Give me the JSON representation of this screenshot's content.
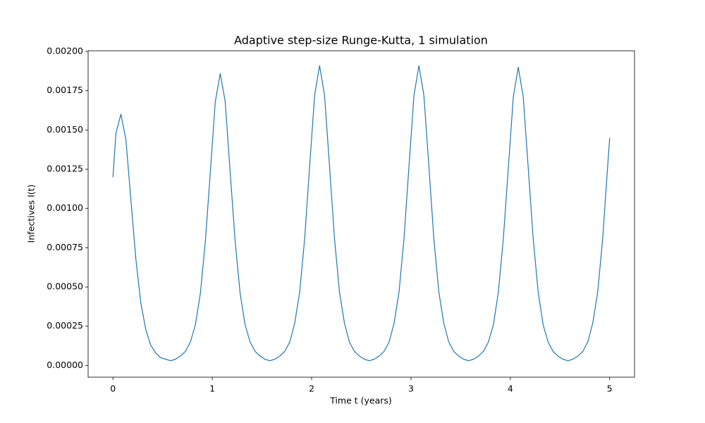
{
  "chart_data": {
    "type": "line",
    "title": "Adaptive step-size Runge-Kutta, 1 simulation",
    "xlabel": "Time t (years)",
    "ylabel": "Infectives I(t)",
    "color": "#1f77b4",
    "x": [
      0,
      0.03,
      0.08,
      0.13,
      0.18,
      0.23,
      0.28,
      0.33,
      0.38,
      0.43,
      0.48,
      0.53,
      0.58,
      0.63,
      0.68,
      0.73,
      0.78,
      0.83,
      0.88,
      0.93,
      0.98,
      1.03,
      1.08,
      1.13,
      1.18,
      1.23,
      1.28,
      1.33,
      1.38,
      1.43,
      1.48,
      1.53,
      1.58,
      1.63,
      1.68,
      1.73,
      1.78,
      1.83,
      1.88,
      1.93,
      1.98,
      2.03,
      2.08,
      2.13,
      2.18,
      2.23,
      2.28,
      2.33,
      2.38,
      2.43,
      2.48,
      2.53,
      2.58,
      2.63,
      2.68,
      2.73,
      2.78,
      2.83,
      2.88,
      2.93,
      2.98,
      3.03,
      3.08,
      3.13,
      3.18,
      3.23,
      3.28,
      3.33,
      3.38,
      3.43,
      3.48,
      3.53,
      3.58,
      3.63,
      3.68,
      3.73,
      3.78,
      3.83,
      3.88,
      3.93,
      3.98,
      4.03,
      4.08,
      4.13,
      4.18,
      4.23,
      4.28,
      4.33,
      4.38,
      4.43,
      4.48,
      4.53,
      4.58,
      4.63,
      4.68,
      4.73,
      4.78,
      4.83,
      4.88,
      4.93,
      4.98,
      5
    ],
    "values": [
      0.0012,
      0.00148,
      0.0016,
      0.00144,
      0.00106,
      0.00068,
      0.0004,
      0.00023,
      0.00013,
      8e-05,
      5e-05,
      4e-05,
      3e-05,
      4e-05,
      6e-05,
      9e-05,
      0.00015,
      0.00026,
      0.00046,
      0.00079,
      0.00123,
      0.00168,
      0.00186,
      0.00168,
      0.00123,
      0.00079,
      0.00046,
      0.00026,
      0.00015,
      9e-05,
      6e-05,
      4e-05,
      3e-05,
      4e-05,
      6e-05,
      9e-05,
      0.00015,
      0.00027,
      0.00047,
      0.00081,
      0.00127,
      0.00172,
      0.00191,
      0.00172,
      0.00127,
      0.00081,
      0.00047,
      0.00027,
      0.00015,
      9e-05,
      6e-05,
      4e-05,
      3e-05,
      4e-05,
      6e-05,
      9e-05,
      0.00015,
      0.00027,
      0.00047,
      0.00081,
      0.00127,
      0.00172,
      0.00191,
      0.00172,
      0.00127,
      0.00081,
      0.00047,
      0.00027,
      0.00015,
      9e-05,
      6e-05,
      4e-05,
      3e-05,
      4e-05,
      6e-05,
      9e-05,
      0.00015,
      0.00026,
      0.00047,
      0.00081,
      0.00126,
      0.00171,
      0.0019,
      0.00171,
      0.00126,
      0.00081,
      0.00047,
      0.00026,
      0.00015,
      9e-05,
      6e-05,
      4e-05,
      3e-05,
      4e-05,
      6e-05,
      9e-05,
      0.00015,
      0.00027,
      0.00047,
      0.00081,
      0.00127,
      0.00145
    ],
    "xlim": [
      -0.25,
      5.25
    ],
    "ylim": [
      -7.45e-05,
      0.0020045
    ],
    "xticks": [
      0,
      1,
      2,
      3,
      4,
      5
    ],
    "yticks": [
      {
        "value": 0,
        "label": "0.00000"
      },
      {
        "value": 0.00025,
        "label": "0.00025"
      },
      {
        "value": 0.0005,
        "label": "0.00050"
      },
      {
        "value": 0.00075,
        "label": "0.00075"
      },
      {
        "value": 0.001,
        "label": "0.00100"
      },
      {
        "value": 0.00125,
        "label": "0.00125"
      },
      {
        "value": 0.0015,
        "label": "0.00150"
      },
      {
        "value": 0.00175,
        "label": "0.00175"
      },
      {
        "value": 0.002,
        "label": "0.00200"
      }
    ],
    "grid": false
  }
}
